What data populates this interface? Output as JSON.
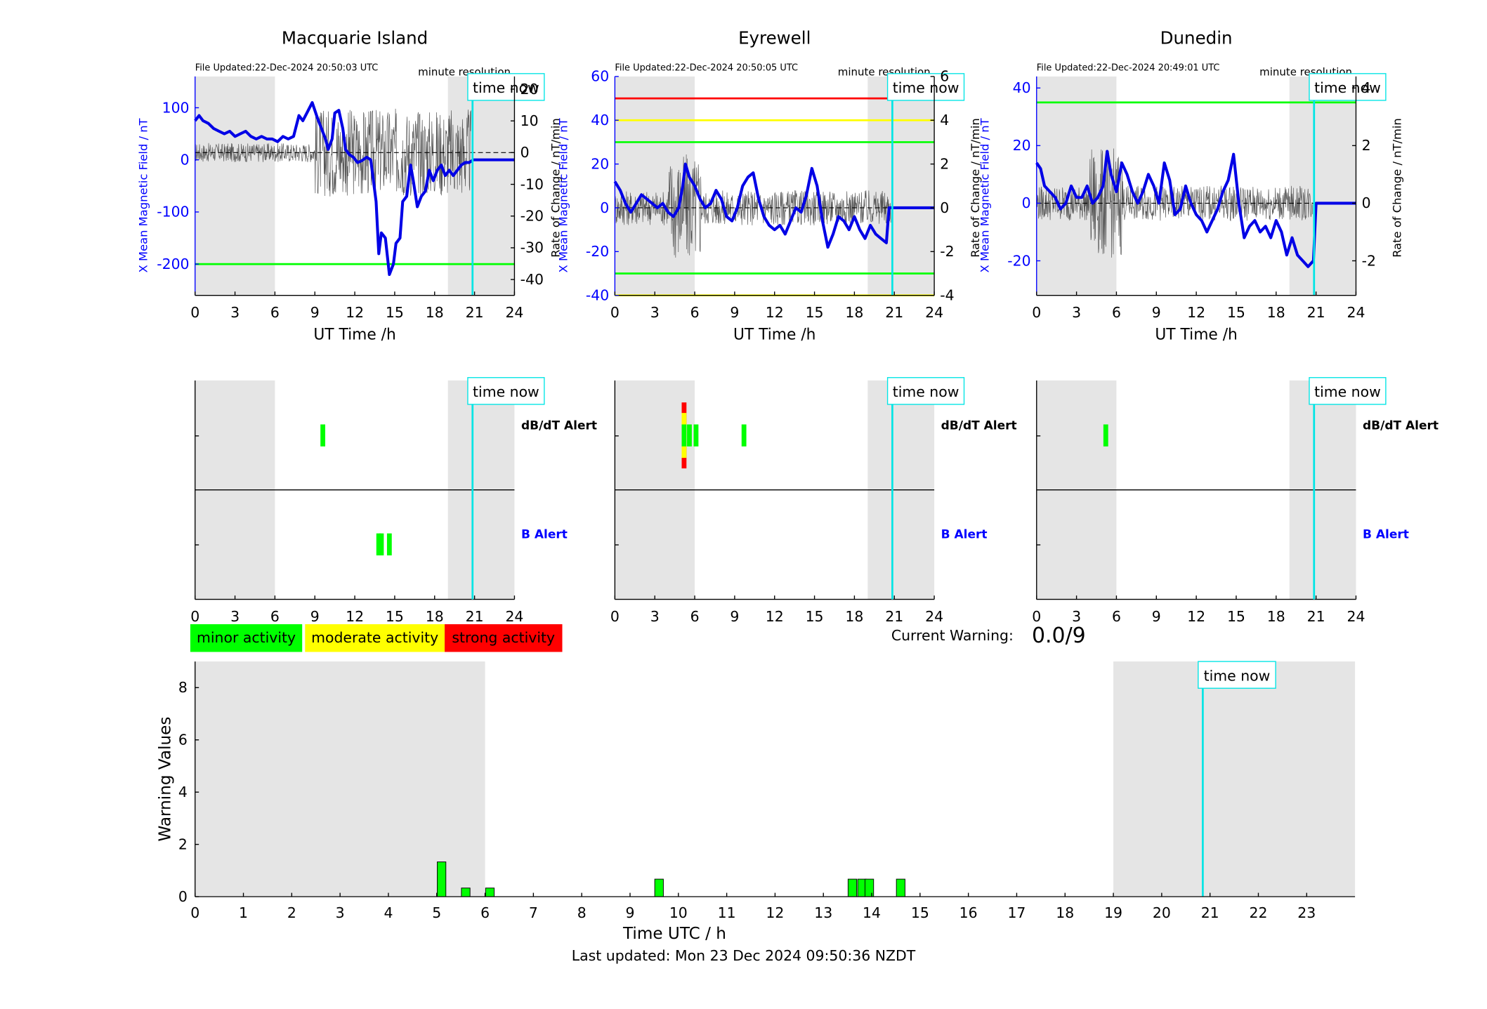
{
  "title_note": "minute resolution",
  "time_now_label": "time now",
  "colors": {
    "mag_line": "#0000e6",
    "rate_line": "#555555",
    "night_shade": "#e5e5e5",
    "time_now": "#00e5e5",
    "green": "#00ff00",
    "yellow": "#ffff00",
    "red": "#ff0000",
    "axis_left": "#0000ff"
  },
  "stations": [
    {
      "name": "Macquarie Island",
      "file_updated": "File Updated:22-Dec-2024 20:50:03 UTC",
      "left_axis_label": "X Mean Magnetic Field / nT",
      "right_axis_label": "Rate of Change / nT/min",
      "left_ylim": [
        -260,
        160
      ],
      "left_ticks": [
        "100",
        "0",
        "-100",
        "-200"
      ],
      "left_tick_values": [
        100,
        0,
        -100,
        -200
      ],
      "right_ylim": [
        -45,
        24
      ],
      "right_ticks": [
        "20",
        "10",
        "0",
        "-10",
        "-20",
        "-30",
        "-40"
      ],
      "right_tick_values": [
        20,
        10,
        0,
        -10,
        -20,
        -30,
        -40
      ],
      "thresholds_left": [
        {
          "value": -200,
          "color": "green"
        }
      ],
      "night_bands": [
        [
          0,
          6
        ],
        [
          19,
          24
        ]
      ],
      "x_label": "UT Time /h",
      "dbdt_alerts": [
        {
          "t": 9.6,
          "level": "minor"
        }
      ],
      "b_alerts": [
        {
          "t": 13.8,
          "level": "minor"
        },
        {
          "t": 14.0,
          "level": "minor"
        },
        {
          "t": 14.6,
          "level": "minor"
        }
      ],
      "mag_series": [
        [
          0,
          75
        ],
        [
          0.3,
          85
        ],
        [
          0.6,
          75
        ],
        [
          1,
          70
        ],
        [
          1.4,
          60
        ],
        [
          1.8,
          55
        ],
        [
          2.2,
          50
        ],
        [
          2.6,
          55
        ],
        [
          3,
          45
        ],
        [
          3.4,
          50
        ],
        [
          3.8,
          55
        ],
        [
          4.2,
          45
        ],
        [
          4.6,
          40
        ],
        [
          5,
          45
        ],
        [
          5.4,
          40
        ],
        [
          5.8,
          40
        ],
        [
          6.2,
          35
        ],
        [
          6.6,
          45
        ],
        [
          7,
          40
        ],
        [
          7.4,
          45
        ],
        [
          7.8,
          85
        ],
        [
          8.1,
          75
        ],
        [
          8.4,
          90
        ],
        [
          8.8,
          110
        ],
        [
          9.2,
          80
        ],
        [
          9.5,
          60
        ],
        [
          9.8,
          40
        ],
        [
          10,
          20
        ],
        [
          10.3,
          40
        ],
        [
          10.5,
          90
        ],
        [
          10.8,
          95
        ],
        [
          11.1,
          60
        ],
        [
          11.3,
          20
        ],
        [
          11.6,
          10
        ],
        [
          11.9,
          5
        ],
        [
          12.2,
          -5
        ],
        [
          12.5,
          -2
        ],
        [
          12.9,
          5
        ],
        [
          13.2,
          0
        ],
        [
          13.4,
          -40
        ],
        [
          13.6,
          -80
        ],
        [
          13.8,
          -180
        ],
        [
          14.0,
          -140
        ],
        [
          14.3,
          -150
        ],
        [
          14.6,
          -220
        ],
        [
          14.9,
          -200
        ],
        [
          15.1,
          -160
        ],
        [
          15.4,
          -150
        ],
        [
          15.6,
          -80
        ],
        [
          15.9,
          -70
        ],
        [
          16.2,
          -10
        ],
        [
          16.4,
          -40
        ],
        [
          16.7,
          -90
        ],
        [
          17,
          -70
        ],
        [
          17.3,
          -60
        ],
        [
          17.6,
          -20
        ],
        [
          17.9,
          -40
        ],
        [
          18.2,
          -20
        ],
        [
          18.5,
          -10
        ],
        [
          18.8,
          -30
        ],
        [
          19.1,
          -20
        ],
        [
          19.4,
          -30
        ],
        [
          19.7,
          -20
        ],
        [
          20,
          -10
        ],
        [
          20.3,
          -5
        ],
        [
          20.6,
          -5
        ],
        [
          20.9,
          0
        ],
        [
          24,
          0
        ]
      ]
    },
    {
      "name": "Eyrewell",
      "file_updated": "File Updated:22-Dec-2024 20:50:05 UTC",
      "left_axis_label": "X Mean Magnetic Field / nT",
      "right_axis_label": "Rate of Change / nT/min",
      "left_ylim": [
        -40,
        60
      ],
      "left_ticks": [
        "60",
        "40",
        "20",
        "0",
        "-20",
        "-40"
      ],
      "left_tick_values": [
        60,
        40,
        20,
        0,
        -20,
        -40
      ],
      "right_ylim": [
        -4,
        6
      ],
      "right_ticks": [
        "6",
        "4",
        "2",
        "0",
        "-2",
        "-4"
      ],
      "right_tick_values": [
        6,
        4,
        2,
        0,
        -2,
        -4
      ],
      "thresholds_left": [
        {
          "value": 50,
          "color": "red"
        },
        {
          "value": 40,
          "color": "yellow"
        },
        {
          "value": 30,
          "color": "green"
        },
        {
          "value": -30,
          "color": "green"
        },
        {
          "value": -40,
          "color": "yellow"
        }
      ],
      "night_bands": [
        [
          0,
          6
        ],
        [
          19,
          24
        ]
      ],
      "x_label": "UT Time /h",
      "dbdt_alerts": [
        {
          "t": 5.2,
          "level": "strong"
        },
        {
          "t": 5.6,
          "level": "minor"
        },
        {
          "t": 6.1,
          "level": "minor"
        },
        {
          "t": 9.7,
          "level": "minor"
        }
      ],
      "b_alerts": [],
      "mag_series": [
        [
          0,
          12
        ],
        [
          0.4,
          8
        ],
        [
          0.8,
          2
        ],
        [
          1.2,
          -2
        ],
        [
          1.6,
          2
        ],
        [
          2,
          6
        ],
        [
          2.4,
          4
        ],
        [
          2.8,
          2
        ],
        [
          3.2,
          0
        ],
        [
          3.6,
          2
        ],
        [
          4,
          -2
        ],
        [
          4.4,
          -4
        ],
        [
          4.8,
          0
        ],
        [
          5.1,
          10
        ],
        [
          5.3,
          20
        ],
        [
          5.6,
          14
        ],
        [
          6,
          10
        ],
        [
          6.4,
          4
        ],
        [
          6.8,
          0
        ],
        [
          7.2,
          2
        ],
        [
          7.6,
          8
        ],
        [
          8,
          4
        ],
        [
          8.4,
          -4
        ],
        [
          8.8,
          -6
        ],
        [
          9.2,
          0
        ],
        [
          9.6,
          10
        ],
        [
          10,
          14
        ],
        [
          10.4,
          16
        ],
        [
          10.8,
          4
        ],
        [
          11.2,
          -4
        ],
        [
          11.6,
          -8
        ],
        [
          12,
          -10
        ],
        [
          12.4,
          -8
        ],
        [
          12.8,
          -12
        ],
        [
          13.2,
          -6
        ],
        [
          13.6,
          0
        ],
        [
          14,
          -2
        ],
        [
          14.4,
          6
        ],
        [
          14.8,
          18
        ],
        [
          15.2,
          10
        ],
        [
          15.6,
          -6
        ],
        [
          16,
          -18
        ],
        [
          16.4,
          -12
        ],
        [
          16.8,
          -4
        ],
        [
          17.2,
          -6
        ],
        [
          17.6,
          -10
        ],
        [
          18,
          -4
        ],
        [
          18.4,
          -10
        ],
        [
          18.8,
          -14
        ],
        [
          19.2,
          -8
        ],
        [
          19.6,
          -12
        ],
        [
          20,
          -14
        ],
        [
          20.4,
          -16
        ],
        [
          20.6,
          0
        ],
        [
          24,
          0
        ]
      ]
    },
    {
      "name": "Dunedin",
      "file_updated": "File Updated:22-Dec-2024 20:49:01 UTC",
      "left_axis_label": "X Mean Magnetic Field / nT",
      "right_axis_label": "Rate of Change / nT/min",
      "left_ylim": [
        -32,
        44
      ],
      "left_ticks": [
        "40",
        "20",
        "0",
        "-20"
      ],
      "left_tick_values": [
        40,
        20,
        0,
        -20
      ],
      "right_ylim": [
        -3.2,
        4.4
      ],
      "right_ticks": [
        "4",
        "2",
        "0",
        "-2"
      ],
      "right_tick_values": [
        4,
        2,
        0,
        -2
      ],
      "thresholds_left": [
        {
          "value": 35,
          "color": "green"
        }
      ],
      "night_bands": [
        [
          0,
          6
        ],
        [
          19,
          24
        ]
      ],
      "x_label": "UT Time /h",
      "dbdt_alerts": [
        {
          "t": 5.2,
          "level": "minor"
        }
      ],
      "b_alerts": [],
      "mag_series": [
        [
          0,
          14
        ],
        [
          0.3,
          12
        ],
        [
          0.6,
          6
        ],
        [
          1,
          4
        ],
        [
          1.4,
          2
        ],
        [
          1.8,
          -2
        ],
        [
          2.2,
          0
        ],
        [
          2.6,
          6
        ],
        [
          3,
          2
        ],
        [
          3.4,
          2
        ],
        [
          3.8,
          6
        ],
        [
          4.2,
          0
        ],
        [
          4.6,
          2
        ],
        [
          5,
          6
        ],
        [
          5.3,
          18
        ],
        [
          5.6,
          10
        ],
        [
          6,
          4
        ],
        [
          6.4,
          14
        ],
        [
          6.8,
          10
        ],
        [
          7.2,
          4
        ],
        [
          7.6,
          0
        ],
        [
          8,
          4
        ],
        [
          8.4,
          10
        ],
        [
          8.8,
          6
        ],
        [
          9.2,
          0
        ],
        [
          9.6,
          14
        ],
        [
          10,
          8
        ],
        [
          10.4,
          -4
        ],
        [
          10.8,
          -2
        ],
        [
          11.2,
          6
        ],
        [
          11.6,
          0
        ],
        [
          12,
          -4
        ],
        [
          12.4,
          -6
        ],
        [
          12.8,
          -10
        ],
        [
          13.2,
          -6
        ],
        [
          13.6,
          -2
        ],
        [
          14,
          4
        ],
        [
          14.4,
          8
        ],
        [
          14.8,
          17
        ],
        [
          15.2,
          0
        ],
        [
          15.6,
          -12
        ],
        [
          16,
          -8
        ],
        [
          16.4,
          -6
        ],
        [
          16.8,
          -10
        ],
        [
          17.2,
          -8
        ],
        [
          17.6,
          -12
        ],
        [
          18,
          -6
        ],
        [
          18.4,
          -10
        ],
        [
          18.8,
          -18
        ],
        [
          19.2,
          -12
        ],
        [
          19.6,
          -18
        ],
        [
          20,
          -20
        ],
        [
          20.4,
          -22
        ],
        [
          20.8,
          -20
        ],
        [
          21,
          0
        ],
        [
          24,
          0
        ]
      ]
    }
  ],
  "alert_rows": {
    "dbdt_label": "dB/dT Alert",
    "b_label": "B Alert"
  },
  "x_ticks": [
    "0",
    "3",
    "6",
    "9",
    "12",
    "15",
    "18",
    "21",
    "24"
  ],
  "x_tick_values": [
    0,
    3,
    6,
    9,
    12,
    15,
    18,
    21,
    24
  ],
  "time_now_hour": 20.85,
  "legend": [
    {
      "label": "minor activity",
      "color": "#00ff00"
    },
    {
      "label": "moderate activity",
      "color": "#ffff00"
    },
    {
      "label": "strong activity",
      "color": "#ff0000"
    }
  ],
  "current_warning": {
    "label": "Current Warning:",
    "value": "0.0/9"
  },
  "chart_data": {
    "type": "bar",
    "title": "",
    "xlabel": "Time UTC / h",
    "ylabel": "Warning Values",
    "ylim": [
      0,
      9
    ],
    "xlim": [
      0,
      24
    ],
    "y_ticks": [
      "0",
      "2",
      "4",
      "6",
      "8"
    ],
    "y_tick_values": [
      0,
      2,
      4,
      6,
      8
    ],
    "x_ticks": [
      "0",
      "1",
      "2",
      "3",
      "4",
      "5",
      "6",
      "7",
      "8",
      "9",
      "10",
      "11",
      "12",
      "13",
      "14",
      "15",
      "16",
      "17",
      "18",
      "19",
      "20",
      "21",
      "22",
      "23"
    ],
    "night_bands": [
      [
        0,
        6
      ],
      [
        19,
        24
      ]
    ],
    "time_now_hour": 20.85,
    "bars": [
      {
        "x": 5.1,
        "value": 1.33
      },
      {
        "x": 5.6,
        "value": 0.33
      },
      {
        "x": 6.1,
        "value": 0.33
      },
      {
        "x": 9.6,
        "value": 0.67
      },
      {
        "x": 13.6,
        "value": 0.67
      },
      {
        "x": 13.8,
        "value": 0.67
      },
      {
        "x": 13.95,
        "value": 0.67
      },
      {
        "x": 14.6,
        "value": 0.67
      }
    ]
  },
  "footer": "Last updated: Mon 23 Dec 2024 09:50:36 NZDT"
}
